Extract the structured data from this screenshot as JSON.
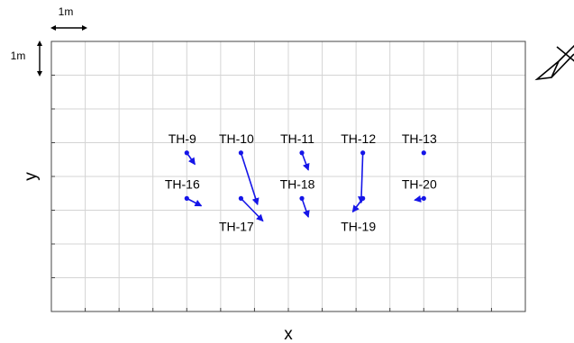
{
  "scale": {
    "horizontal_label": "1m",
    "vertical_label": "1m"
  },
  "axes": {
    "xlabel": "x",
    "ylabel": "y"
  },
  "colors": {
    "vector": "#1515e8",
    "grid": "#d4d4d4",
    "frame": "#444444"
  },
  "grid": {
    "columns": 14,
    "rows": 8
  },
  "points": [
    {
      "id": "TH-9",
      "col": 4,
      "row": 3.3,
      "dx": 0.24,
      "dy": 0.34,
      "label_pos": "above"
    },
    {
      "id": "TH-10",
      "col": 5.6,
      "row": 3.3,
      "dx": 0.49,
      "dy": 1.53,
      "label_pos": "above"
    },
    {
      "id": "TH-11",
      "col": 7.4,
      "row": 3.3,
      "dx": 0.19,
      "dy": 0.51,
      "label_pos": "above"
    },
    {
      "id": "TH-12",
      "col": 9.2,
      "row": 3.3,
      "dx": -0.05,
      "dy": 1.48,
      "label_pos": "above"
    },
    {
      "id": "TH-13",
      "col": 11,
      "row": 3.3,
      "dx": 0,
      "dy": 0,
      "label_pos": "above"
    },
    {
      "id": "TH-16",
      "col": 4,
      "row": 4.65,
      "dx": 0.43,
      "dy": 0.22,
      "label_pos": "above"
    },
    {
      "id": "TH-17",
      "col": 5.6,
      "row": 4.65,
      "dx": 0.65,
      "dy": 0.67,
      "label_pos": "below"
    },
    {
      "id": "TH-18",
      "col": 7.4,
      "row": 4.65,
      "dx": 0.19,
      "dy": 0.55,
      "label_pos": "above"
    },
    {
      "id": "TH-19",
      "col": 9.2,
      "row": 4.65,
      "dx": -0.3,
      "dy": 0.4,
      "label_pos": "below"
    },
    {
      "id": "TH-20",
      "col": 11,
      "row": 4.65,
      "dx": -0.27,
      "dy": 0.05,
      "label_pos": "above"
    }
  ]
}
